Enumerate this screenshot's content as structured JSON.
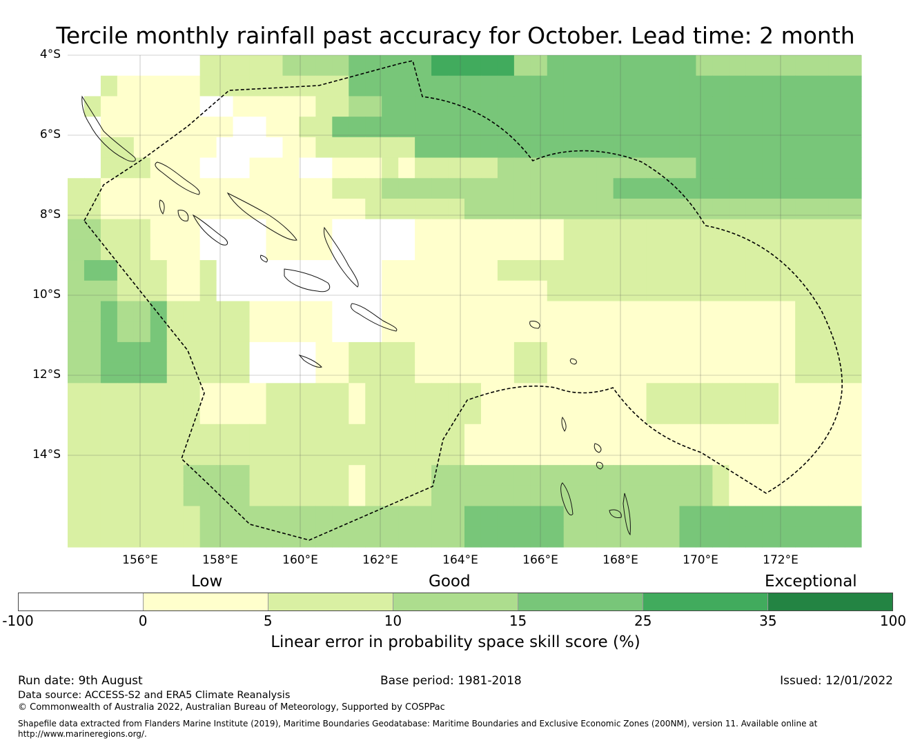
{
  "title": "Tercile monthly rainfall past accuracy for October. Lead time: 2 month",
  "map": {
    "lat_labels": [
      "4°S",
      "6°S",
      "8°S",
      "10°S",
      "12°S",
      "14°S"
    ],
    "lon_labels": [
      "156°E",
      "158°E",
      "160°E",
      "162°E",
      "164°E",
      "166°E",
      "168°E",
      "170°E",
      "172°E"
    ],
    "lat_range": [
      "4°S",
      "16.3°S"
    ],
    "lon_range": [
      "154.2°E",
      "174°E"
    ],
    "grid_step_deg": 0.833,
    "note_colors": "cell class 0 = -100..0, 1 = 0..5, 2 = 5..10, 3 = 10..15, 4 = 15..25, 5 = 25..35, 6 = 35..100",
    "skill_classes": [
      "000000002222233334444455555334444444443333333333",
      "002111112222222224444444444444444444444444444444",
      "021111110011111223344444444444444444444444444444",
      "001111111100112244444444444444444444444444444444",
      "002211111000011222222444444444444444444444444444",
      "002221110001110011121222223333333333334444444444",
      "221111111111111122233333333333333444444444444444",
      "221111111111111111222222333333333333333333333333",
      "332221110000111100000111111111222222222222222222",
      "332221110000111100000111111111222222222222222222",
      "344222112000000000011111112222222222222222222222",
      "333222112000000000011111111112222222222222222222",
      "334334222221111100011111111111111111111111112222",
      "334334222221111100011111111111111111111111112222",
      "334444222220000112222111111221111111111111112222",
      "334444222220000112222111111221111111111111112222",
      "222222221111222221222222211111111112222222211111",
      "222222221111222221222222211111111112222222211111",
      "222222222222222222222222111111111111111111111111",
      "222222222222222222222222111111111111111111111111",
      "222222233332222221222233333333333333333211111111",
      "222222233332222221222233333333333333333211111111",
      "222222223333333333333333444444333333344444444444",
      "222222223333333333333333444444333333344444444444"
    ],
    "eez_boundary": "Solomon Islands and Vanuatu EEZ (dashed)"
  },
  "categories": {
    "low": "Low",
    "good": "Good",
    "exceptional": "Exceptional"
  },
  "colorbar": {
    "ticks": [
      "-100",
      "0",
      "5",
      "10",
      "15",
      "25",
      "35",
      "100"
    ],
    "colors": [
      "#ffffff",
      "#ffffcc",
      "#d9f0a3",
      "#addd8e",
      "#78c679",
      "#41ab5d",
      "#238443"
    ],
    "label": "Linear error in probability space skill score (%)"
  },
  "footer": {
    "run_date": "Run date: 9th August",
    "base_period": "Base period: 1981-2018",
    "issued": "Issued: 12/01/2022",
    "data_source": "Data source: ACCESS-S2 and ERA5 Climate Reanalysis",
    "copyright": "© Commonwealth of Australia 2022, Australian Bureau of Meteorology, Supported by COSPPac",
    "shapefile": "Shapefile data extracted from Flanders Marine Institute (2019), Maritime Boundaries Geodatabase: Maritime Boundaries and Exclusive Economic Zones (200NM), version 11. Available online at",
    "shapefile_url": "http://www.marineregions.org/."
  }
}
